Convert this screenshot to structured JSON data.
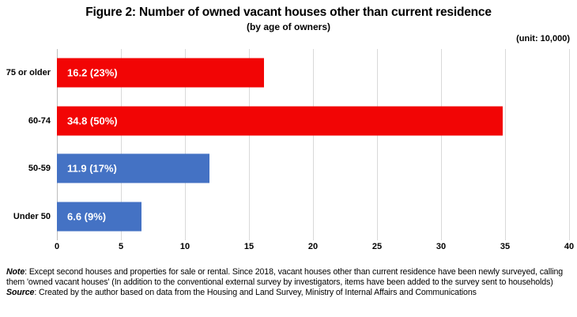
{
  "title": "Figure 2: Number of owned vacant houses other than current residence",
  "subtitle": "(by age of owners)",
  "unit_label": "(unit: 10,000)",
  "chart_data": {
    "type": "bar",
    "orientation": "horizontal",
    "title": "Figure 2: Number of owned vacant houses other than current residence",
    "subtitle": "(by age of owners)",
    "unit": "10,000",
    "categories": [
      "75 or older",
      "60-74",
      "50-59",
      "Under 50"
    ],
    "values": [
      16.2,
      34.8,
      11.9,
      6.6
    ],
    "percentages": [
      23,
      50,
      17,
      9
    ],
    "bar_labels": [
      "16.2 (23%)",
      "34.8 (50%)",
      "11.9 (17%)",
      "6.6 (9%)"
    ],
    "bar_colors": [
      "#f20505",
      "#f20505",
      "#4472c4",
      "#4472c4"
    ],
    "xlim": [
      0,
      40
    ],
    "x_ticks": [
      0,
      5,
      10,
      15,
      20,
      25,
      30,
      35,
      40
    ],
    "grid": true,
    "legend": false
  },
  "colors": {
    "red_bar": "#f20505",
    "blue_bar": "#4472c4",
    "gridline": "#d9d9d9",
    "axis_line": "#bdbdbd",
    "bar_label_text": "#ffffff"
  },
  "notes": {
    "note_label": "Note",
    "note_text": ": Except second houses and properties for sale or rental. Since 2018, vacant houses other than current residence have been newly surveyed, calling them 'owned vacant houses' (In addition to the conventional external survey by investigators, items have been added to the survey sent to households)",
    "source_label": "Source",
    "source_text": ": Created by the author based on data from the Housing and Land Survey, Ministry of Internal Affairs and Communications"
  }
}
